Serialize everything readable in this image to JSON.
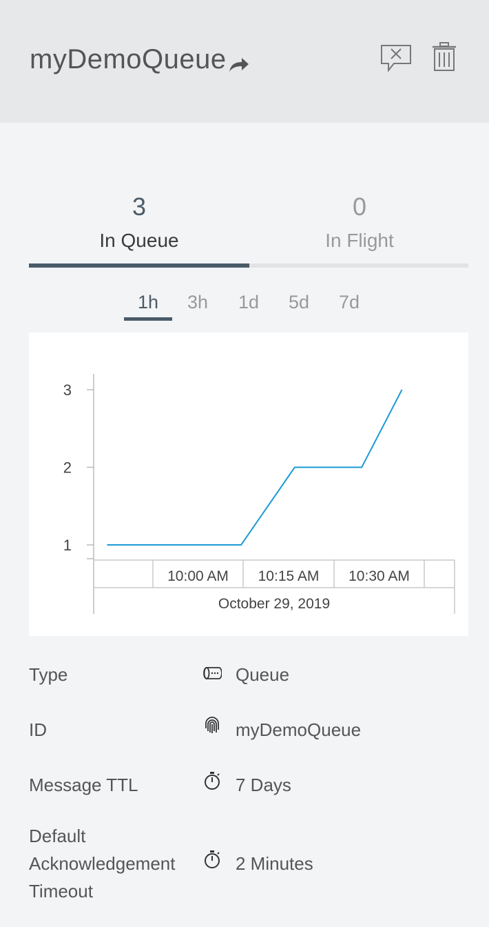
{
  "header": {
    "title": "myDemoQueue",
    "share_icon": "share-arrow-icon",
    "purge_icon": "purge-messages-icon",
    "delete_icon": "trash-icon"
  },
  "stats": {
    "in_queue": {
      "value": "3",
      "label": "In Queue"
    },
    "in_flight": {
      "value": "0",
      "label": "In Flight"
    },
    "active_tab": "In Queue"
  },
  "time_ranges": {
    "options": [
      "1h",
      "3h",
      "1d",
      "5d",
      "7d"
    ],
    "selected": "1h"
  },
  "chart_data": {
    "type": "line",
    "title": "",
    "xlabel": "October 29, 2019",
    "ylabel": "",
    "x_ticks": [
      "10:00 AM",
      "10:15 AM",
      "10:30 AM"
    ],
    "y_ticks": [
      "1",
      "2",
      "3"
    ],
    "ylim": [
      0.8,
      3.2
    ],
    "xlim": [
      "09:50",
      "10:42"
    ],
    "grid": false,
    "legend": "none",
    "series": [
      {
        "color": "#1b9ad6",
        "x": [
          "09:52",
          "10:09",
          "10:10",
          "10:12",
          "10:20",
          "10:27",
          "10:28",
          "10:30",
          "10:36"
        ],
        "y": [
          1,
          1,
          1,
          1,
          2,
          2,
          2,
          2,
          3
        ]
      }
    ]
  },
  "details": {
    "type": {
      "label": "Type",
      "value": "Queue",
      "icon": "queue-icon"
    },
    "id": {
      "label": "ID",
      "value": "myDemoQueue",
      "icon": "fingerprint-icon"
    },
    "ttl": {
      "label": "Message TTL",
      "value": "7 Days",
      "icon": "stopwatch-icon"
    },
    "ack": {
      "label_lines": [
        "Default",
        "Acknowledgement",
        "Timeout"
      ],
      "value": "2 Minutes",
      "icon": "stopwatch-icon"
    }
  },
  "colors": {
    "accent": "#4a5b68",
    "line": "#1b9ad6",
    "header_bg": "#e7e8ea",
    "panel_bg": "#f3f4f6"
  }
}
